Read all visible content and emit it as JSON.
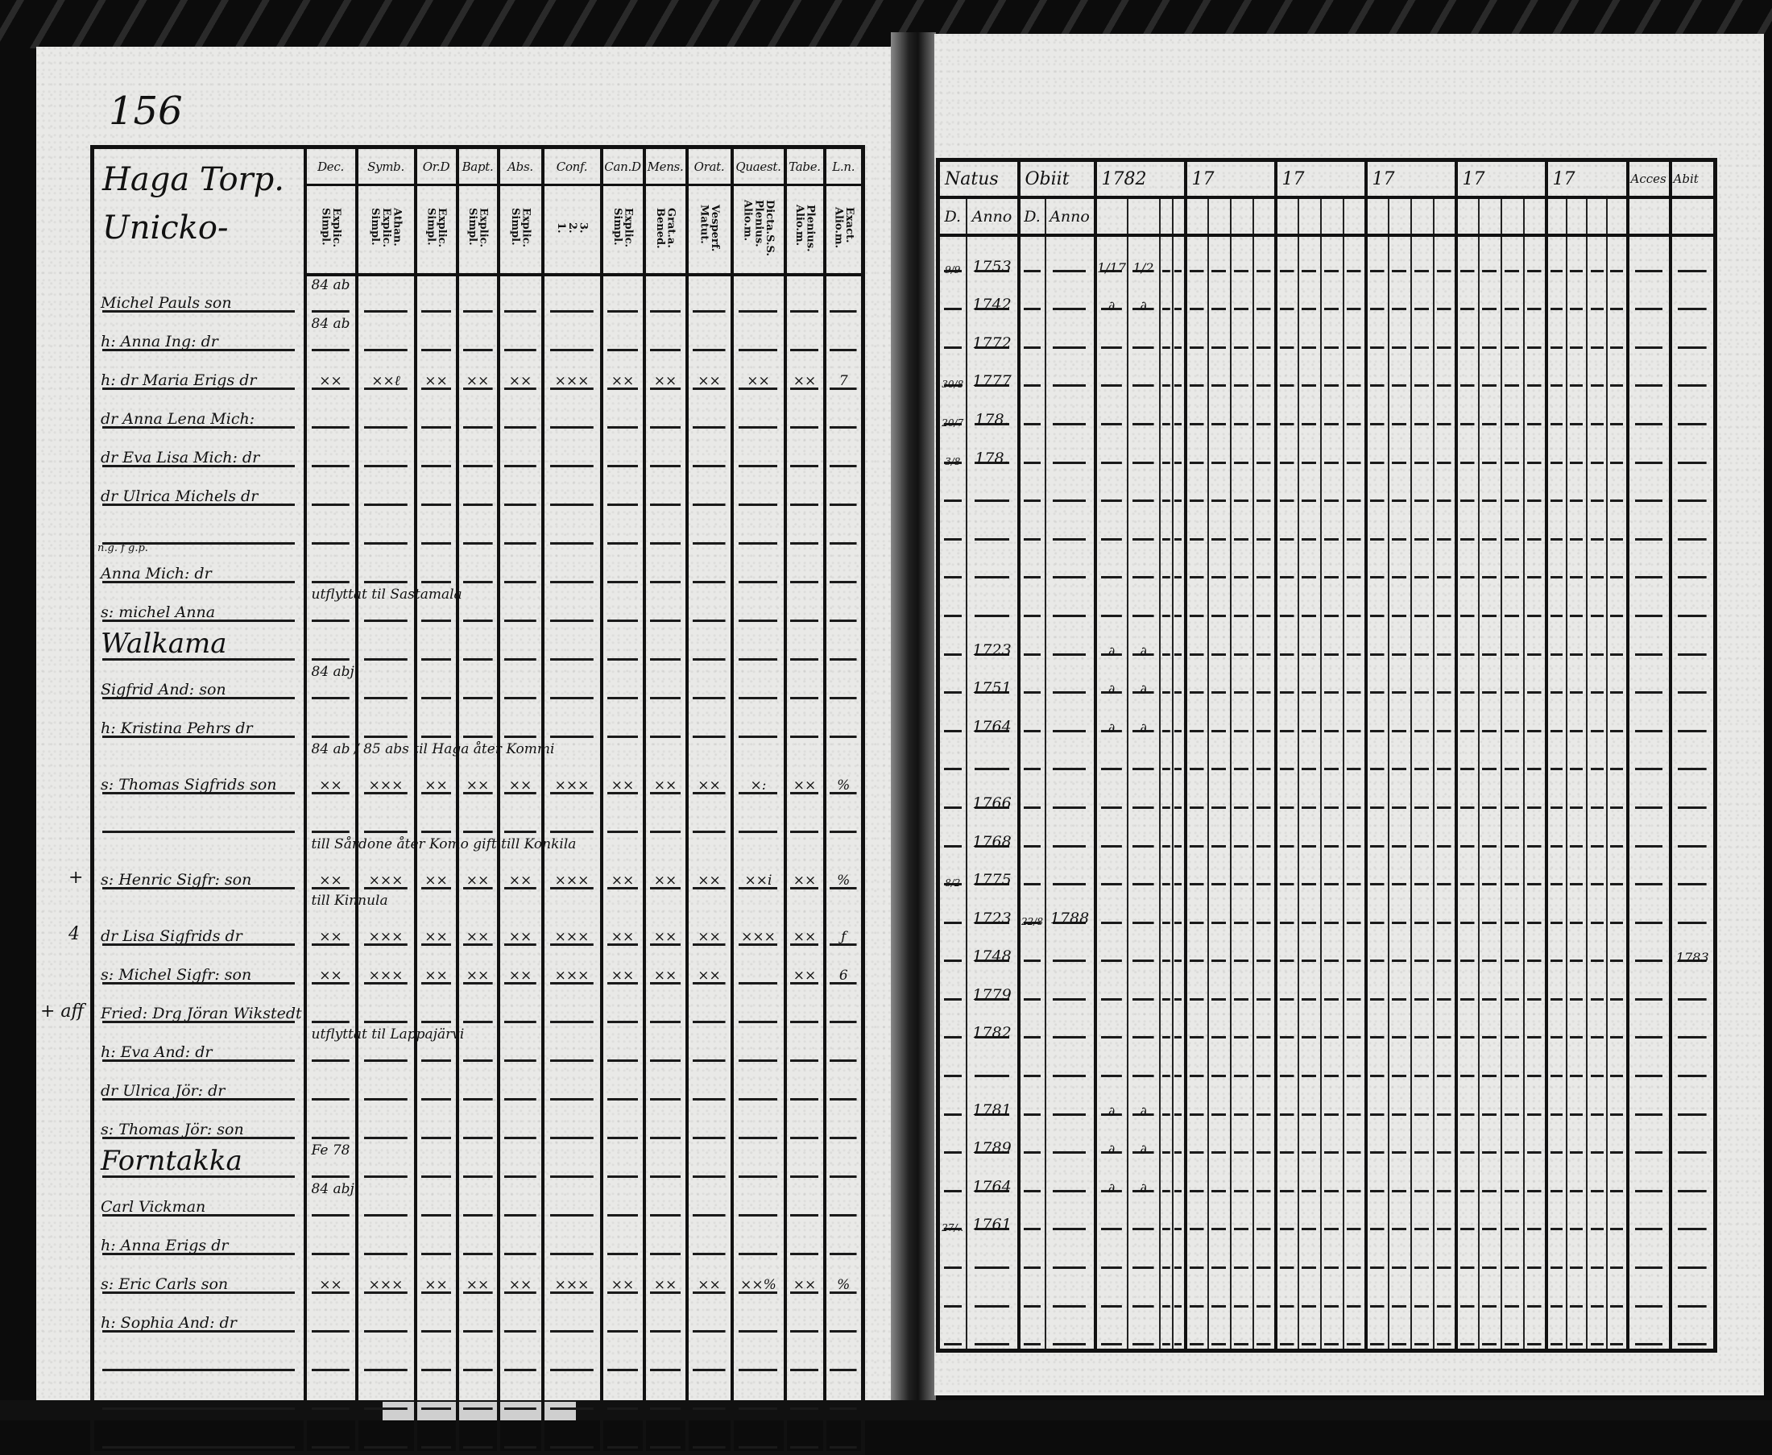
{
  "left": {
    "page_number": "156",
    "place_heading": "Haga Torp. Unicko-",
    "headers": [
      {
        "top": "Dec.",
        "sub": "Explic.\nSimpl."
      },
      {
        "top": "Symb.",
        "sub": "Athan.\nExplic.\nSimpl."
      },
      {
        "top": "Or.D",
        "sub": "Explic.\nSimpl."
      },
      {
        "top": "Bapt.",
        "sub": "Explic.\nSimpl."
      },
      {
        "top": "Abs.",
        "sub": "Explic.\nSimpl."
      },
      {
        "top": "Conf.",
        "sub": "3.\n2.\n1."
      },
      {
        "top": "Can.D",
        "sub": "Explic.\nSimpl."
      },
      {
        "top": "Mens.",
        "sub": "Grat.a.\nBened."
      },
      {
        "top": "Orat.",
        "sub": "Vesperf.\nMatut."
      },
      {
        "top": "Quaest.",
        "sub": "Dicta.S.S.\nPlenius.\nAlio.m."
      },
      {
        "top": "Tabe.",
        "sub": "Plenius.\nAlio.m."
      },
      {
        "top": "L.n.",
        "sub": "Exact.\nAlio.m."
      }
    ],
    "rows": [
      {
        "name": "Michel Pauls son",
        "note": "84 ab",
        "cells": [
          "",
          "",
          "",
          "",
          "",
          "",
          "",
          "",
          "",
          "",
          "",
          ""
        ]
      },
      {
        "name": "h: Anna Ing: dr",
        "note": "84 ab",
        "cells": [
          "",
          "",
          "",
          "",
          "",
          "",
          "",
          "",
          "",
          "",
          "",
          ""
        ]
      },
      {
        "name": "h: dr Maria Erigs dr",
        "note": "",
        "cells": [
          "××",
          "××ℓ",
          "××",
          "××",
          "××",
          "×××",
          "××",
          "××",
          "××",
          "××",
          "××",
          "7"
        ]
      },
      {
        "name": "dr Anna Lena Mich:",
        "note": "",
        "cells": [
          "",
          "",
          "",
          "",
          "",
          "",
          "",
          "",
          "",
          "",
          "",
          ""
        ]
      },
      {
        "name": "dr Eva Lisa Mich: dr",
        "note": "",
        "cells": [
          "",
          "",
          "",
          "",
          "",
          "",
          "",
          "",
          "",
          "",
          "",
          ""
        ]
      },
      {
        "name": "dr Ulrica Michels dr",
        "note": "",
        "cells": [
          "",
          "",
          "",
          "",
          "",
          "",
          "",
          "",
          "",
          "",
          "",
          ""
        ]
      },
      {
        "name": "",
        "note": "",
        "cells": [
          "",
          "",
          "",
          "",
          "",
          "",
          "",
          "",
          "",
          "",
          "",
          ""
        ]
      },
      {
        "name": "Anna Mich: dr",
        "prefix": "n.g. f g.p.",
        "note": "",
        "cells": [
          "",
          "",
          "",
          "",
          "",
          "",
          "",
          "",
          "",
          "",
          "",
          ""
        ]
      },
      {
        "name": "s: michel Anna",
        "note": "utflyttat til Sastamala",
        "cells": [
          "",
          "",
          "",
          "",
          "",
          "",
          "",
          "",
          "",
          "",
          "",
          ""
        ]
      },
      {
        "name": "Walkama",
        "heading": true,
        "note": "",
        "cells": [
          "",
          "",
          "",
          "",
          "",
          "",
          "",
          "",
          "",
          "",
          "",
          ""
        ]
      },
      {
        "name": "Sigfrid And: son",
        "note": "84 abj:",
        "cells": [
          "",
          "",
          "",
          "",
          "",
          "",
          "",
          "",
          "",
          "",
          "",
          ""
        ]
      },
      {
        "name": "h: Kristina Pehrs dr",
        "note": "",
        "cells": [
          "",
          "",
          "",
          "",
          "",
          "",
          "",
          "",
          "",
          "",
          "",
          ""
        ]
      },
      {
        "name": "s: Thomas Sigfrids son",
        "note": "84 ab / 85 abs til Haga åter Kommi",
        "cells": [
          "××",
          "×××",
          "××",
          "××",
          "××",
          "×××",
          "××",
          "××",
          "××",
          "×:",
          "××",
          "%"
        ]
      },
      {
        "name": "",
        "note": "",
        "cells": [
          "",
          "",
          "",
          "",
          "",
          "",
          "",
          "",
          "",
          "",
          "",
          ""
        ]
      },
      {
        "name": "s: Henric Sigfr: son",
        "note": "till Sårdone åter Komo gift till Konkila",
        "cells": [
          "××",
          "×××",
          "××",
          "××",
          "××",
          "×××",
          "××",
          "××",
          "××",
          "××i",
          "××",
          "%"
        ]
      },
      {
        "name": "dr Lisa Sigfrids dr",
        "note": "till Kinnula",
        "cells": [
          "××",
          "×××",
          "××",
          "××",
          "××",
          "×××",
          "××",
          "××",
          "××",
          "×××",
          "××",
          "ƒ"
        ]
      },
      {
        "name": "s: Michel Sigfr: son",
        "note": "",
        "cells": [
          "××",
          "×××",
          "××",
          "××",
          "××",
          "×××",
          "××",
          "××",
          "××",
          "",
          "××",
          "6"
        ]
      },
      {
        "name": "Fried: Drg Jöran Wikstedt",
        "note": "",
        "cells": [
          "",
          "",
          "",
          "",
          "",
          "",
          "",
          "",
          "",
          "",
          "",
          ""
        ]
      },
      {
        "name": "h: Eva And: dr",
        "note": "utflyttat til Lappajärvi",
        "cells": [
          "",
          "",
          "",
          "",
          "",
          "",
          "",
          "",
          "",
          "",
          "",
          ""
        ]
      },
      {
        "name": "dr Ulrica Jör: dr",
        "note": "",
        "cells": [
          "",
          "",
          "",
          "",
          "",
          "",
          "",
          "",
          "",
          "",
          "",
          ""
        ]
      },
      {
        "name": "s: Thomas Jör: son",
        "note": "",
        "cells": [
          "",
          "",
          "",
          "",
          "",
          "",
          "",
          "",
          "",
          "",
          "",
          ""
        ]
      },
      {
        "name": "Forntakka",
        "heading": true,
        "note": "Fe 78",
        "cells": [
          "",
          "",
          "",
          "",
          "",
          "",
          "",
          "",
          "",
          "",
          "",
          ""
        ]
      },
      {
        "name": "Carl Vickman",
        "note": "84 abj",
        "cells": [
          "",
          "",
          "",
          "",
          "",
          "",
          "",
          "",
          "",
          "",
          "",
          ""
        ]
      },
      {
        "name": "h: Anna Erigs dr",
        "note": "",
        "cells": [
          "",
          "",
          "",
          "",
          "",
          "",
          "",
          "",
          "",
          "",
          "",
          ""
        ]
      },
      {
        "name": "s: Eric Carls son",
        "note": "",
        "cells": [
          "××",
          "×××",
          "××",
          "××",
          "××",
          "×××",
          "××",
          "××",
          "××",
          "××%",
          "××",
          "%"
        ]
      },
      {
        "name": "h: Sophia And: dr",
        "note": "",
        "cells": [
          "",
          "",
          "",
          "",
          "",
          "",
          "",
          "",
          "",
          "",
          "",
          ""
        ]
      },
      {
        "name": "",
        "note": "",
        "cells": [
          "",
          "",
          "",
          "",
          "",
          "",
          "",
          "",
          "",
          "",
          "",
          ""
        ]
      },
      {
        "name": "",
        "note": "",
        "cells": [
          "",
          "",
          "",
          "",
          "",
          "",
          "",
          "",
          "",
          "",
          "",
          ""
        ]
      },
      {
        "name": "",
        "note": "",
        "cells": [
          "",
          "",
          "",
          "",
          "",
          "",
          "",
          "",
          "",
          "",
          "",
          ""
        ]
      }
    ],
    "margin_marks": [
      {
        "row": 14,
        "text": "+"
      },
      {
        "row": 15,
        "text": "4"
      },
      {
        "row": 17,
        "text": "+ aff"
      }
    ]
  },
  "right": {
    "headers": {
      "natus": "Natus",
      "obiit": "Obiit",
      "years": [
        "1782",
        "17",
        "17",
        "17",
        "17",
        "17"
      ],
      "acces": "Acces",
      "abit": "Abit",
      "d": "D.",
      "anno": "Anno"
    },
    "rows": [
      {
        "natus_d": "9/9",
        "natus_anno": "1753",
        "obiit_d": "",
        "obiit_anno": "",
        "marks": [
          "1/17",
          "1/2"
        ],
        "abit": ""
      },
      {
        "natus_d": "",
        "natus_anno": "1742",
        "obiit_d": "",
        "obiit_anno": "",
        "marks": [
          "∂",
          "∂"
        ],
        "abit": ""
      },
      {
        "natus_d": "",
        "natus_anno": "1772",
        "obiit_d": "",
        "obiit_anno": "",
        "marks": [
          "",
          ""
        ],
        "abit": ""
      },
      {
        "natus_d": "30/8",
        "natus_anno": "1777",
        "obiit_d": "",
        "obiit_anno": "",
        "marks": [
          "",
          ""
        ],
        "abit": ""
      },
      {
        "natus_d": "20/7",
        "natus_anno": "178.",
        "obiit_d": "",
        "obiit_anno": "",
        "marks": [
          "",
          ""
        ],
        "abit": ""
      },
      {
        "natus_d": "3/8",
        "natus_anno": "178.",
        "obiit_d": "",
        "obiit_anno": "",
        "marks": [
          "",
          ""
        ],
        "abit": ""
      },
      {
        "natus_d": "",
        "natus_anno": "",
        "obiit_d": "",
        "obiit_anno": "",
        "marks": [
          "",
          ""
        ],
        "abit": ""
      },
      {
        "natus_d": "",
        "natus_anno": "",
        "obiit_d": "",
        "obiit_anno": "",
        "marks": [
          "",
          ""
        ],
        "abit": ""
      },
      {
        "natus_d": "",
        "natus_anno": "",
        "obiit_d": "",
        "obiit_anno": "",
        "marks": [
          "",
          ""
        ],
        "abit": ""
      },
      {
        "natus_d": "",
        "natus_anno": "",
        "obiit_d": "",
        "obiit_anno": "",
        "marks": [
          "",
          ""
        ],
        "abit": ""
      },
      {
        "natus_d": "",
        "natus_anno": "1723",
        "obiit_d": "",
        "obiit_anno": "",
        "marks": [
          "∂",
          "∂"
        ],
        "abit": ""
      },
      {
        "natus_d": "",
        "natus_anno": "1751",
        "obiit_d": "",
        "obiit_anno": "",
        "marks": [
          "∂",
          "∂"
        ],
        "abit": ""
      },
      {
        "natus_d": "",
        "natus_anno": "1764",
        "obiit_d": "",
        "obiit_anno": "",
        "marks": [
          "∂",
          "∂"
        ],
        "abit": ""
      },
      {
        "natus_d": "",
        "natus_anno": "",
        "obiit_d": "",
        "obiit_anno": "",
        "marks": [
          "",
          ""
        ],
        "abit": ""
      },
      {
        "natus_d": "",
        "natus_anno": "1766",
        "obiit_d": "",
        "obiit_anno": "",
        "marks": [
          "",
          ""
        ],
        "abit": ""
      },
      {
        "natus_d": "",
        "natus_anno": "1768",
        "obiit_d": "",
        "obiit_anno": "",
        "marks": [
          "",
          ""
        ],
        "abit": ""
      },
      {
        "natus_d": "8/2",
        "natus_anno": "1775",
        "obiit_d": "",
        "obiit_anno": "",
        "marks": [
          "",
          ""
        ],
        "abit": ""
      },
      {
        "natus_d": "",
        "natus_anno": "1723",
        "obiit_d": "22/8",
        "obiit_anno": "1788",
        "marks": [
          "",
          ""
        ],
        "abit": ""
      },
      {
        "natus_d": "",
        "natus_anno": "1748",
        "obiit_d": "",
        "obiit_anno": "",
        "marks": [
          "",
          ""
        ],
        "abit": "1783"
      },
      {
        "natus_d": "",
        "natus_anno": "1779",
        "obiit_d": "",
        "obiit_anno": "",
        "marks": [
          "",
          ""
        ],
        "abit": ""
      },
      {
        "natus_d": "",
        "natus_anno": "1782",
        "obiit_d": "",
        "obiit_anno": "",
        "marks": [
          "",
          ""
        ],
        "abit": ""
      },
      {
        "natus_d": "",
        "natus_anno": "",
        "obiit_d": "",
        "obiit_anno": "",
        "marks": [
          "",
          ""
        ],
        "abit": ""
      },
      {
        "natus_d": "",
        "natus_anno": "1781",
        "obiit_d": "",
        "obiit_anno": "",
        "marks": [
          "∂",
          "∂"
        ],
        "abit": ""
      },
      {
        "natus_d": "",
        "natus_anno": "1789",
        "obiit_d": "",
        "obiit_anno": "",
        "marks": [
          "∂",
          "∂"
        ],
        "abit": ""
      },
      {
        "natus_d": "",
        "natus_anno": "1764",
        "obiit_d": "",
        "obiit_anno": "",
        "marks": [
          "∂",
          "∂"
        ],
        "abit": ""
      },
      {
        "natus_d": "27/..",
        "natus_anno": "1761",
        "obiit_d": "",
        "obiit_anno": "",
        "marks": [
          "",
          ""
        ],
        "abit": ""
      },
      {
        "natus_d": "",
        "natus_anno": "",
        "obiit_d": "",
        "obiit_anno": "",
        "marks": [
          "",
          ""
        ],
        "abit": ""
      },
      {
        "natus_d": "",
        "natus_anno": "",
        "obiit_d": "",
        "obiit_anno": "",
        "marks": [
          "",
          ""
        ],
        "abit": ""
      },
      {
        "natus_d": "",
        "natus_anno": "",
        "obiit_d": "",
        "obiit_anno": "",
        "marks": [
          "",
          ""
        ],
        "abit": ""
      }
    ]
  }
}
